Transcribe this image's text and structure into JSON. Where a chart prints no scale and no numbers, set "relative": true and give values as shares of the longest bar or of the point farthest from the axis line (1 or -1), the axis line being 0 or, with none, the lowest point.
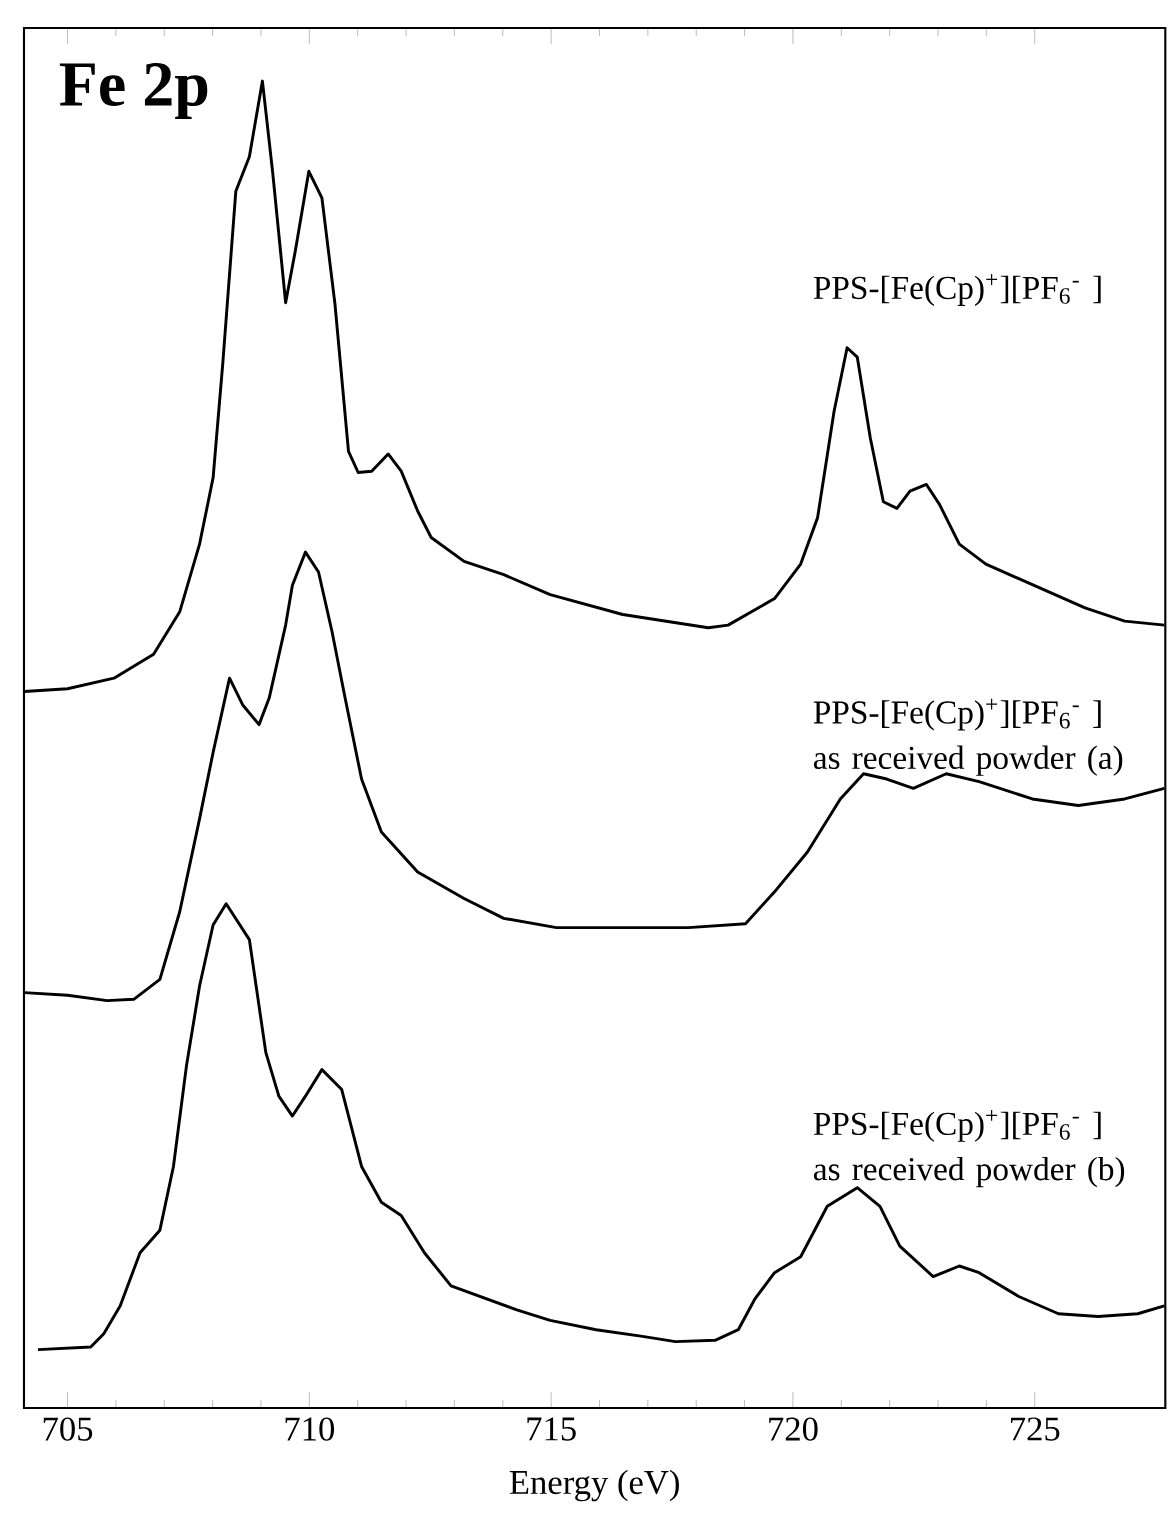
{
  "chart_data": {
    "type": "line",
    "title": "Fe 2p",
    "xlabel": "Energy (eV)",
    "relative": true,
    "xlim": [
      704.1,
      727.7
    ],
    "xticks": [
      705,
      710,
      715,
      720,
      725
    ],
    "series": [
      {
        "name": "PPS-[Fe(Cp)$^{+}$][PF$_{6}$$^{-}$ ]",
        "color": "#000000",
        "x": [
          704.11,
          705.0,
          705.96,
          706.78,
          707.32,
          707.73,
          708.01,
          708.21,
          708.48,
          708.76,
          709.03,
          709.24,
          709.51,
          709.71,
          709.99,
          710.26,
          710.53,
          710.81,
          711.01,
          711.29,
          711.63,
          711.9,
          712.24,
          712.52,
          713.2,
          714.02,
          714.98,
          716.48,
          718.25,
          718.66,
          719.62,
          720.16,
          720.51,
          720.85,
          721.12,
          721.33,
          721.6,
          721.87,
          722.15,
          722.42,
          722.76,
          723.03,
          723.44,
          723.99,
          724.67,
          726.04,
          726.86,
          727.68
        ],
        "values": [
          0.54,
          0.542,
          0.55,
          0.568,
          0.6,
          0.651,
          0.701,
          0.787,
          0.917,
          0.943,
          1.0,
          0.932,
          0.833,
          0.872,
          0.932,
          0.912,
          0.832,
          0.721,
          0.705,
          0.706,
          0.719,
          0.706,
          0.676,
          0.656,
          0.638,
          0.628,
          0.613,
          0.598,
          0.588,
          0.59,
          0.61,
          0.636,
          0.671,
          0.751,
          0.799,
          0.792,
          0.731,
          0.683,
          0.678,
          0.691,
          0.696,
          0.681,
          0.651,
          0.636,
          0.625,
          0.603,
          0.593,
          0.59
        ]
      },
      {
        "name": "PPS-[Fe(Cp)$^{+}$][PF$_{6}$$^{-}$ ] as received powder (a)",
        "color": "#000000",
        "x": [
          704.11,
          705.0,
          705.82,
          706.37,
          706.91,
          707.32,
          707.73,
          708.01,
          708.35,
          708.62,
          708.96,
          709.17,
          709.51,
          709.65,
          709.92,
          710.19,
          710.47,
          710.74,
          711.08,
          711.49,
          712.24,
          713.2,
          714.02,
          715.11,
          716.48,
          717.84,
          719.02,
          719.62,
          720.3,
          720.98,
          721.46,
          721.94,
          722.49,
          723.17,
          723.85,
          724.95,
          725.9,
          726.86,
          727.68
        ],
        "values": [
          0.313,
          0.311,
          0.307,
          0.308,
          0.323,
          0.374,
          0.444,
          0.494,
          0.55,
          0.53,
          0.515,
          0.535,
          0.59,
          0.62,
          0.645,
          0.63,
          0.585,
          0.535,
          0.474,
          0.434,
          0.404,
          0.384,
          0.369,
          0.362,
          0.362,
          0.362,
          0.365,
          0.389,
          0.419,
          0.459,
          0.478,
          0.474,
          0.467,
          0.478,
          0.472,
          0.459,
          0.454,
          0.459,
          0.467
        ]
      },
      {
        "name": "PPS-[Fe(Cp)$^{+}$][PF$_{6}$$^{-}$ ] as received powder (b)",
        "color": "#000000",
        "x": [
          704.39,
          705.48,
          705.75,
          706.09,
          706.5,
          706.91,
          707.19,
          707.46,
          707.73,
          708.01,
          708.28,
          708.76,
          709.1,
          709.37,
          709.65,
          709.92,
          710.26,
          710.67,
          711.08,
          711.49,
          711.9,
          712.38,
          712.93,
          713.61,
          714.29,
          714.98,
          715.93,
          716.89,
          717.57,
          718.39,
          718.87,
          719.21,
          719.62,
          720.16,
          720.71,
          721.33,
          721.8,
          722.21,
          722.9,
          723.44,
          723.85,
          724.67,
          725.49,
          726.31,
          727.13,
          727.68
        ],
        "values": [
          0.044,
          0.046,
          0.056,
          0.077,
          0.117,
          0.134,
          0.182,
          0.258,
          0.318,
          0.364,
          0.38,
          0.353,
          0.268,
          0.235,
          0.22,
          0.235,
          0.255,
          0.24,
          0.182,
          0.155,
          0.145,
          0.117,
          0.092,
          0.083,
          0.074,
          0.066,
          0.059,
          0.054,
          0.05,
          0.051,
          0.059,
          0.082,
          0.102,
          0.114,
          0.152,
          0.166,
          0.152,
          0.122,
          0.099,
          0.107,
          0.102,
          0.084,
          0.071,
          0.069,
          0.071,
          0.077
        ]
      }
    ]
  }
}
